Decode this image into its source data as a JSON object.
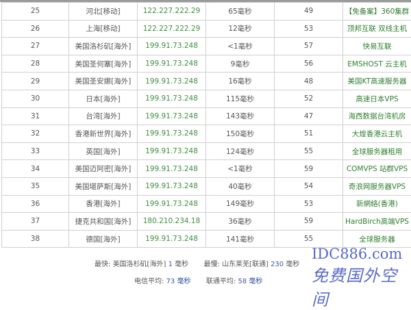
{
  "rows": [
    {
      "no": "25",
      "location": "河北[移动]",
      "ip": "122.227.222.29",
      "time": "65毫秒",
      "ttl": "49",
      "host": "【免备案】360集群"
    },
    {
      "no": "26",
      "location": "上海[移动]",
      "ip": "122.227.222.29",
      "time": "12毫秒",
      "ttl": "53",
      "host": "顶邦互联 双线主机"
    },
    {
      "no": "27",
      "location": "美国洛杉矶[海外]",
      "ip": "199.91.73.248",
      "time": "<1毫秒",
      "ttl": "57",
      "host": "快易互联"
    },
    {
      "no": "28",
      "location": "美国圣何塞[海外]",
      "ip": "199.91.73.248",
      "time": "9毫秒",
      "ttl": "56",
      "host": "EMSHOST 云主机"
    },
    {
      "no": "29",
      "location": "美国圣安娜[海外]",
      "ip": "199.91.73.248",
      "time": "16毫秒",
      "ttl": "48",
      "host": "美国KT高速服务器"
    },
    {
      "no": "30",
      "location": "日本[海外]",
      "ip": "199.91.73.248",
      "time": "115毫秒",
      "ttl": "52",
      "host": "高速日本VPS"
    },
    {
      "no": "31",
      "location": "台湾[海外]",
      "ip": "199.91.73.248",
      "time": "143毫秒",
      "ttl": "47",
      "host": "海西数据台湾机房"
    },
    {
      "no": "32",
      "location": "香港新世界[海外]",
      "ip": "199.91.73.248",
      "time": "150毫秒",
      "ttl": "51",
      "host": "大煌香港云主机"
    },
    {
      "no": "33",
      "location": "英国[海外]",
      "ip": "199.91.73.248",
      "time": "124毫秒",
      "ttl": "55",
      "host": "全球服务器租用"
    },
    {
      "no": "34",
      "location": "美国迈阿密[海外]",
      "ip": "199.91.73.248",
      "time": "<1毫秒",
      "ttl": "59",
      "host": "COMVPS 站群VPS"
    },
    {
      "no": "35",
      "location": "美国堪萨斯[海外]",
      "ip": "199.91.73.248",
      "time": "40毫秒",
      "ttl": "54",
      "host": "奇浪网服务器VPS"
    },
    {
      "no": "36",
      "location": "香港[海外]",
      "ip": "199.91.73.248",
      "time": "149毫秒",
      "ttl": "53",
      "host": "新網絡(香港)"
    },
    {
      "no": "37",
      "location": "捷克共和国[海外]",
      "ip": "180.210.234.18",
      "time": "36毫秒",
      "ttl": "59",
      "host": "HardBirch高端VPS"
    },
    {
      "no": "38",
      "location": "德国[海外]",
      "ip": "199.91.73.248",
      "time": "141毫秒",
      "ttl": "55",
      "host": "全球服务器"
    }
  ],
  "summary": {
    "fastest_label": "最快:",
    "fastest_location": "美国洛杉矶[海外]",
    "fastest_value": "1",
    "slowest_label": "最慢:",
    "slowest_location": "山东莱芜[联通]",
    "slowest_value": "230",
    "unit": "毫秒",
    "telecom_label": "电信平均:",
    "telecom_value": "73",
    "unicom_label": "联通平均:",
    "unicom_value": "58"
  },
  "watermark": {
    "line1": "IDC886.com",
    "line2": "免费国外空间"
  }
}
